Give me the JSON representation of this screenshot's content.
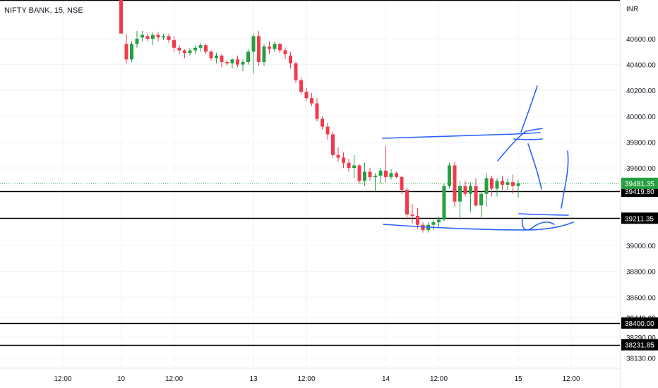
{
  "header": {
    "symbol": "NIFTY BANK, 15, NSE",
    "currency": "INR"
  },
  "colors": {
    "up": "#26a041",
    "down": "#ef3b4d",
    "grid": "#f0f3fa",
    "axis_text": "#131722",
    "horizontal_line": "#000000",
    "drawing": "#2962ff",
    "last_price_line": "#26a041",
    "label_bg": "#000000",
    "label_text": "#ffffff"
  },
  "chart_data": {
    "type": "candlestick",
    "y_range": [
      38050,
      40900
    ],
    "y_ticks": [
      {
        "value": 40600,
        "label": "40600.00"
      },
      {
        "value": 40400,
        "label": "40400.00"
      },
      {
        "value": 40200,
        "label": "40200.00"
      },
      {
        "value": 40000,
        "label": "40000.00"
      },
      {
        "value": 39800,
        "label": "39800.00"
      },
      {
        "value": 39600,
        "label": "39600.00"
      },
      {
        "value": 39000,
        "label": "39000.00"
      },
      {
        "value": 38800,
        "label": "38800.00"
      },
      {
        "value": 38600,
        "label": "38600.00"
      },
      {
        "value": 38440,
        "label": "38440.00"
      },
      {
        "value": 38290,
        "label": "38290.00"
      },
      {
        "value": 38130,
        "label": "38130.00"
      }
    ],
    "x_ticks": [
      {
        "bar": -11,
        "label": "12:00"
      },
      {
        "bar": 0,
        "label": "10"
      },
      {
        "bar": 10,
        "label": "12:00"
      },
      {
        "bar": 25,
        "label": "13"
      },
      {
        "bar": 35,
        "label": "12:00"
      },
      {
        "bar": 50,
        "label": "14"
      },
      {
        "bar": 60,
        "label": "12:00"
      },
      {
        "bar": 75,
        "label": "15"
      },
      {
        "bar": 85,
        "label": "12:00"
      }
    ],
    "horizontal_levels": [
      {
        "value": 40900,
        "label": ""
      },
      {
        "value": 39419.8,
        "label": "39419.80"
      },
      {
        "value": 39211.35,
        "label": "39211.35"
      },
      {
        "value": 38400.0,
        "label": "38400.00"
      },
      {
        "value": 38231.85,
        "label": "38231.85"
      }
    ],
    "last_price": {
      "value": 39481.35,
      "label": "39481.35"
    },
    "candles": [
      [
        40900,
        40900,
        40640,
        40640
      ],
      [
        40560,
        40640,
        40410,
        40440
      ],
      [
        40440,
        40580,
        40420,
        40560
      ],
      [
        40560,
        40660,
        40530,
        40600
      ],
      [
        40610,
        40660,
        40580,
        40630
      ],
      [
        40620,
        40640,
        40580,
        40600
      ],
      [
        40600,
        40650,
        40550,
        40630
      ],
      [
        40630,
        40650,
        40580,
        40610
      ],
      [
        40610,
        40640,
        40590,
        40620
      ],
      [
        40620,
        40640,
        40570,
        40590
      ],
      [
        40590,
        40620,
        40500,
        40530
      ],
      [
        40530,
        40550,
        40480,
        40510
      ],
      [
        40510,
        40520,
        40450,
        40490
      ],
      [
        40490,
        40530,
        40470,
        40510
      ],
      [
        40510,
        40550,
        40480,
        40530
      ],
      [
        40530,
        40570,
        40500,
        40550
      ],
      [
        40550,
        40560,
        40480,
        40500
      ],
      [
        40500,
        40510,
        40430,
        40450
      ],
      [
        40450,
        40490,
        40410,
        40470
      ],
      [
        40470,
        40480,
        40380,
        40420
      ],
      [
        40420,
        40440,
        40390,
        40410
      ],
      [
        40410,
        40450,
        40370,
        40440
      ],
      [
        40440,
        40470,
        40380,
        40400
      ],
      [
        40400,
        40440,
        40350,
        40420
      ],
      [
        40420,
        40520,
        40400,
        40500
      ],
      [
        40500,
        40640,
        40330,
        40620
      ],
      [
        40620,
        40660,
        40390,
        40420
      ],
      [
        40420,
        40560,
        40390,
        40540
      ],
      [
        40540,
        40580,
        40480,
        40520
      ],
      [
        40520,
        40580,
        40500,
        40560
      ],
      [
        40560,
        40570,
        40490,
        40510
      ],
      [
        40510,
        40530,
        40440,
        40480
      ],
      [
        40470,
        40500,
        40370,
        40410
      ],
      [
        40410,
        40420,
        40260,
        40280
      ],
      [
        40280,
        40300,
        40170,
        40190
      ],
      [
        40190,
        40220,
        40120,
        40140
      ],
      [
        40140,
        40180,
        40080,
        40100
      ],
      [
        40100,
        40140,
        39960,
        39980
      ],
      [
        39980,
        40000,
        39900,
        39920
      ],
      [
        39920,
        39950,
        39820,
        39860
      ],
      [
        39860,
        39880,
        39680,
        39700
      ],
      [
        39700,
        39760,
        39650,
        39680
      ],
      [
        39680,
        39720,
        39600,
        39640
      ],
      [
        39640,
        39670,
        39570,
        39600
      ],
      [
        39600,
        39700,
        39520,
        39620
      ],
      [
        39620,
        39630,
        39480,
        39500
      ],
      [
        39500,
        39640,
        39460,
        39570
      ],
      [
        39570,
        39600,
        39500,
        39530
      ],
      [
        39530,
        39560,
        39420,
        39540
      ],
      [
        39540,
        39600,
        39480,
        39580
      ],
      [
        39580,
        39770,
        39490,
        39530
      ],
      [
        39530,
        39590,
        39510,
        39560
      ],
      [
        39560,
        39570,
        39520,
        39530
      ],
      [
        39530,
        39540,
        39400,
        39430
      ],
      [
        39430,
        39450,
        39200,
        39240
      ],
      [
        39240,
        39320,
        39170,
        39230
      ],
      [
        39230,
        39290,
        39130,
        39160
      ],
      [
        39160,
        39180,
        39100,
        39120
      ],
      [
        39120,
        39180,
        39100,
        39160
      ],
      [
        39160,
        39200,
        39120,
        39180
      ],
      [
        39180,
        39220,
        39140,
        39200
      ],
      [
        39200,
        39480,
        39190,
        39460
      ],
      [
        39460,
        39640,
        39440,
        39620
      ],
      [
        39620,
        39650,
        39300,
        39340
      ],
      [
        39340,
        39500,
        39200,
        39460
      ],
      [
        39460,
        39500,
        39380,
        39400
      ],
      [
        39400,
        39490,
        39260,
        39460
      ],
      [
        39460,
        39520,
        39300,
        39310
      ],
      [
        39310,
        39420,
        39220,
        39400
      ],
      [
        39400,
        39560,
        39300,
        39520
      ],
      [
        39520,
        39540,
        39380,
        39440
      ],
      [
        39440,
        39520,
        39380,
        39500
      ],
      [
        39500,
        39540,
        39430,
        39470
      ],
      [
        39470,
        39520,
        39430,
        39490
      ],
      [
        39490,
        39550,
        39400,
        39460
      ],
      [
        39460,
        39510,
        39370,
        39480
      ]
    ]
  }
}
